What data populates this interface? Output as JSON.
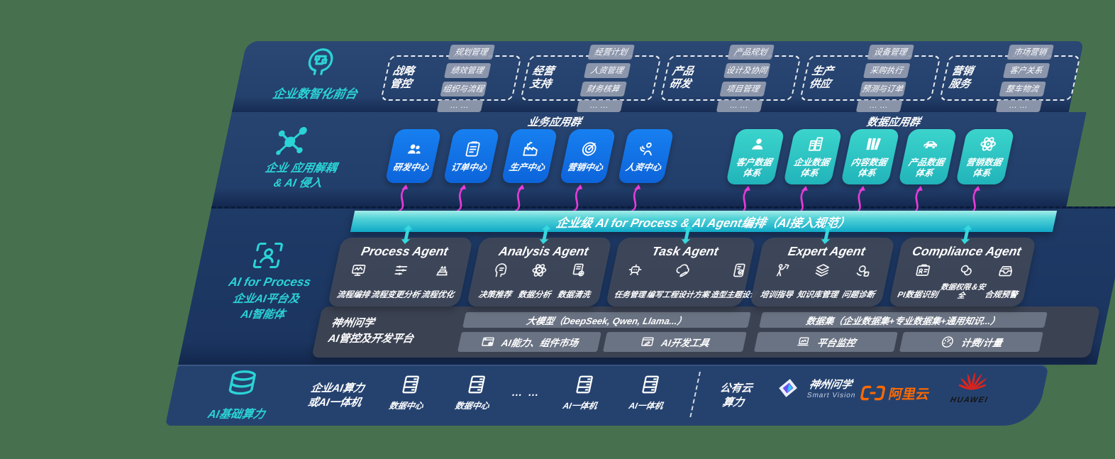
{
  "colors": {
    "page_background": "#47714E",
    "body_navy": "#1E3A66",
    "accent_teal": "#2BD3D6",
    "app_blue": "#1173E8",
    "app_teal": "#2EC8C2",
    "band_teal": "#0FA9C7",
    "arrow_magenta": "#E83BD8",
    "panel_gray": "#3B4252",
    "bar_gray": "#6A7383",
    "aliyun_orange": "#FF6A00",
    "huawei_red": "#E2231A"
  },
  "frontend": {
    "icon": "brain-circuit-icon",
    "label": "企业数智化前台",
    "groups": [
      {
        "title": "战略管控",
        "chips": [
          "规划管理",
          "绩效管理",
          "组织与流程",
          "… …"
        ]
      },
      {
        "title": "经营支持",
        "chips": [
          "经营计划",
          "人资管理",
          "财务核算",
          "… …"
        ]
      },
      {
        "title": "产品研发",
        "chips": [
          "产品规划",
          "设计及协同",
          "项目管理",
          "… …"
        ]
      },
      {
        "title": "生产供应",
        "chips": [
          "设备管理",
          "采购执行",
          "预测与订单",
          "… …"
        ]
      },
      {
        "title": "营销服务",
        "chips": [
          "市场营销",
          "客户关系",
          "整车物流",
          "… …"
        ]
      }
    ]
  },
  "decouple": {
    "icon": "molecule-icon",
    "label_line1": "企业 应用解耦",
    "label_line2": "& AI 侵入",
    "business_title": "业务应用群",
    "data_title": "数据应用群",
    "arrow_icon": "magenta-flow-arrow-icon",
    "business_apps": [
      {
        "label": "研发中心",
        "icon": "team-icon"
      },
      {
        "label": "订单中心",
        "icon": "clipboard-icon"
      },
      {
        "label": "生产中心",
        "icon": "factory-icon"
      },
      {
        "label": "营销中心",
        "icon": "target-icon"
      },
      {
        "label": "人资中心",
        "icon": "person-wave-icon"
      }
    ],
    "data_apps": [
      {
        "label": "客户数据体系",
        "icon": "user-icon"
      },
      {
        "label": "企业数据体系",
        "icon": "building-icon"
      },
      {
        "label": "内容数据体系",
        "icon": "books-icon"
      },
      {
        "label": "产品数据体系",
        "icon": "car-icon"
      },
      {
        "label": "营销数据体系",
        "icon": "atom-icon"
      }
    ]
  },
  "band": {
    "label": "企业级 AI for Process & AI Agent编排（AI接入规范）"
  },
  "agents": {
    "side_icon": "scan-person-icon",
    "side_label_line1": "AI for Process",
    "side_label_line2": "企业AI平台及",
    "side_label_line3": "AI智能体",
    "connector_icon": "teal-connector-icon",
    "cards": [
      {
        "title": "Process Agent",
        "items": [
          {
            "label": "流程编排",
            "icon": "monitor-wave-icon"
          },
          {
            "label": "流程变更分析",
            "icon": "sliders-icon"
          },
          {
            "label": "流程优化",
            "icon": "optimize-layers-icon"
          }
        ]
      },
      {
        "title": "Analysis Agent",
        "items": [
          {
            "label": "决策推荐",
            "icon": "head-chat-icon"
          },
          {
            "label": "数据分析",
            "icon": "atom-icon"
          },
          {
            "label": "数据清洗",
            "icon": "doc-gear-icon"
          }
        ]
      },
      {
        "title": "Task Agent",
        "items": [
          {
            "label": "任务管理",
            "icon": "robot-grid-icon"
          },
          {
            "label": "编写工程设计方案",
            "icon": "cloud-pen-icon"
          },
          {
            "label": "造型主题设计",
            "icon": "tablet-check-icon"
          }
        ]
      },
      {
        "title": "Expert Agent",
        "items": [
          {
            "label": "培训指导",
            "icon": "mentor-icon"
          },
          {
            "label": "知识库管理",
            "icon": "layers-icon"
          },
          {
            "label": "问题诊断",
            "icon": "diagnose-icon"
          }
        ]
      },
      {
        "title": "Compliance Agent",
        "items": [
          {
            "label": "PI数据识别",
            "icon": "id-card-icon"
          },
          {
            "label": "数据权限＆安全",
            "icon": "permission-icon"
          },
          {
            "label": "合规预警",
            "icon": "alert-inbox-icon"
          }
        ]
      }
    ]
  },
  "platform": {
    "label_line1": "神州问学",
    "label_line2": "AI管控及开发平台",
    "model_bar": "大模型（DeepSeek, Qwen, Llama...）",
    "dataset_bar": "数据集（企业数据集+专业数据集+通用知识...）",
    "tools": [
      {
        "label": "AI能力、组件市场",
        "icon": "browser-gear-icon"
      },
      {
        "label": "AI开发工具",
        "icon": "browser-pen-icon"
      },
      {
        "label": "平台监控",
        "icon": "laptop-monitor-icon"
      },
      {
        "label": "计费/计量",
        "icon": "gauge-icon"
      }
    ]
  },
  "infra": {
    "icon": "database-icon",
    "label": "AI基础算力",
    "compute_label_line1": "企业AI算力",
    "compute_label_line2": "或AI一体机",
    "nodes": [
      {
        "label": "数据中心",
        "icon": "server-icon"
      },
      {
        "label": "数据中心",
        "icon": "server-icon"
      },
      {
        "label": "… …",
        "icon": ""
      },
      {
        "label": "AI一体机",
        "icon": "server-icon"
      },
      {
        "label": "AI一体机",
        "icon": "server-icon"
      }
    ],
    "public_cloud_line1": "公有云",
    "public_cloud_line2": "算力",
    "logos": {
      "szwx": {
        "icon": "szwx-diamond-icon",
        "name": "神州问学",
        "sub": "Smart Vision"
      },
      "aliyun": {
        "icon": "aliyun-icon",
        "name": "阿里云"
      },
      "huawei": {
        "icon": "huawei-flower-icon",
        "name": "HUAWEI"
      }
    }
  }
}
